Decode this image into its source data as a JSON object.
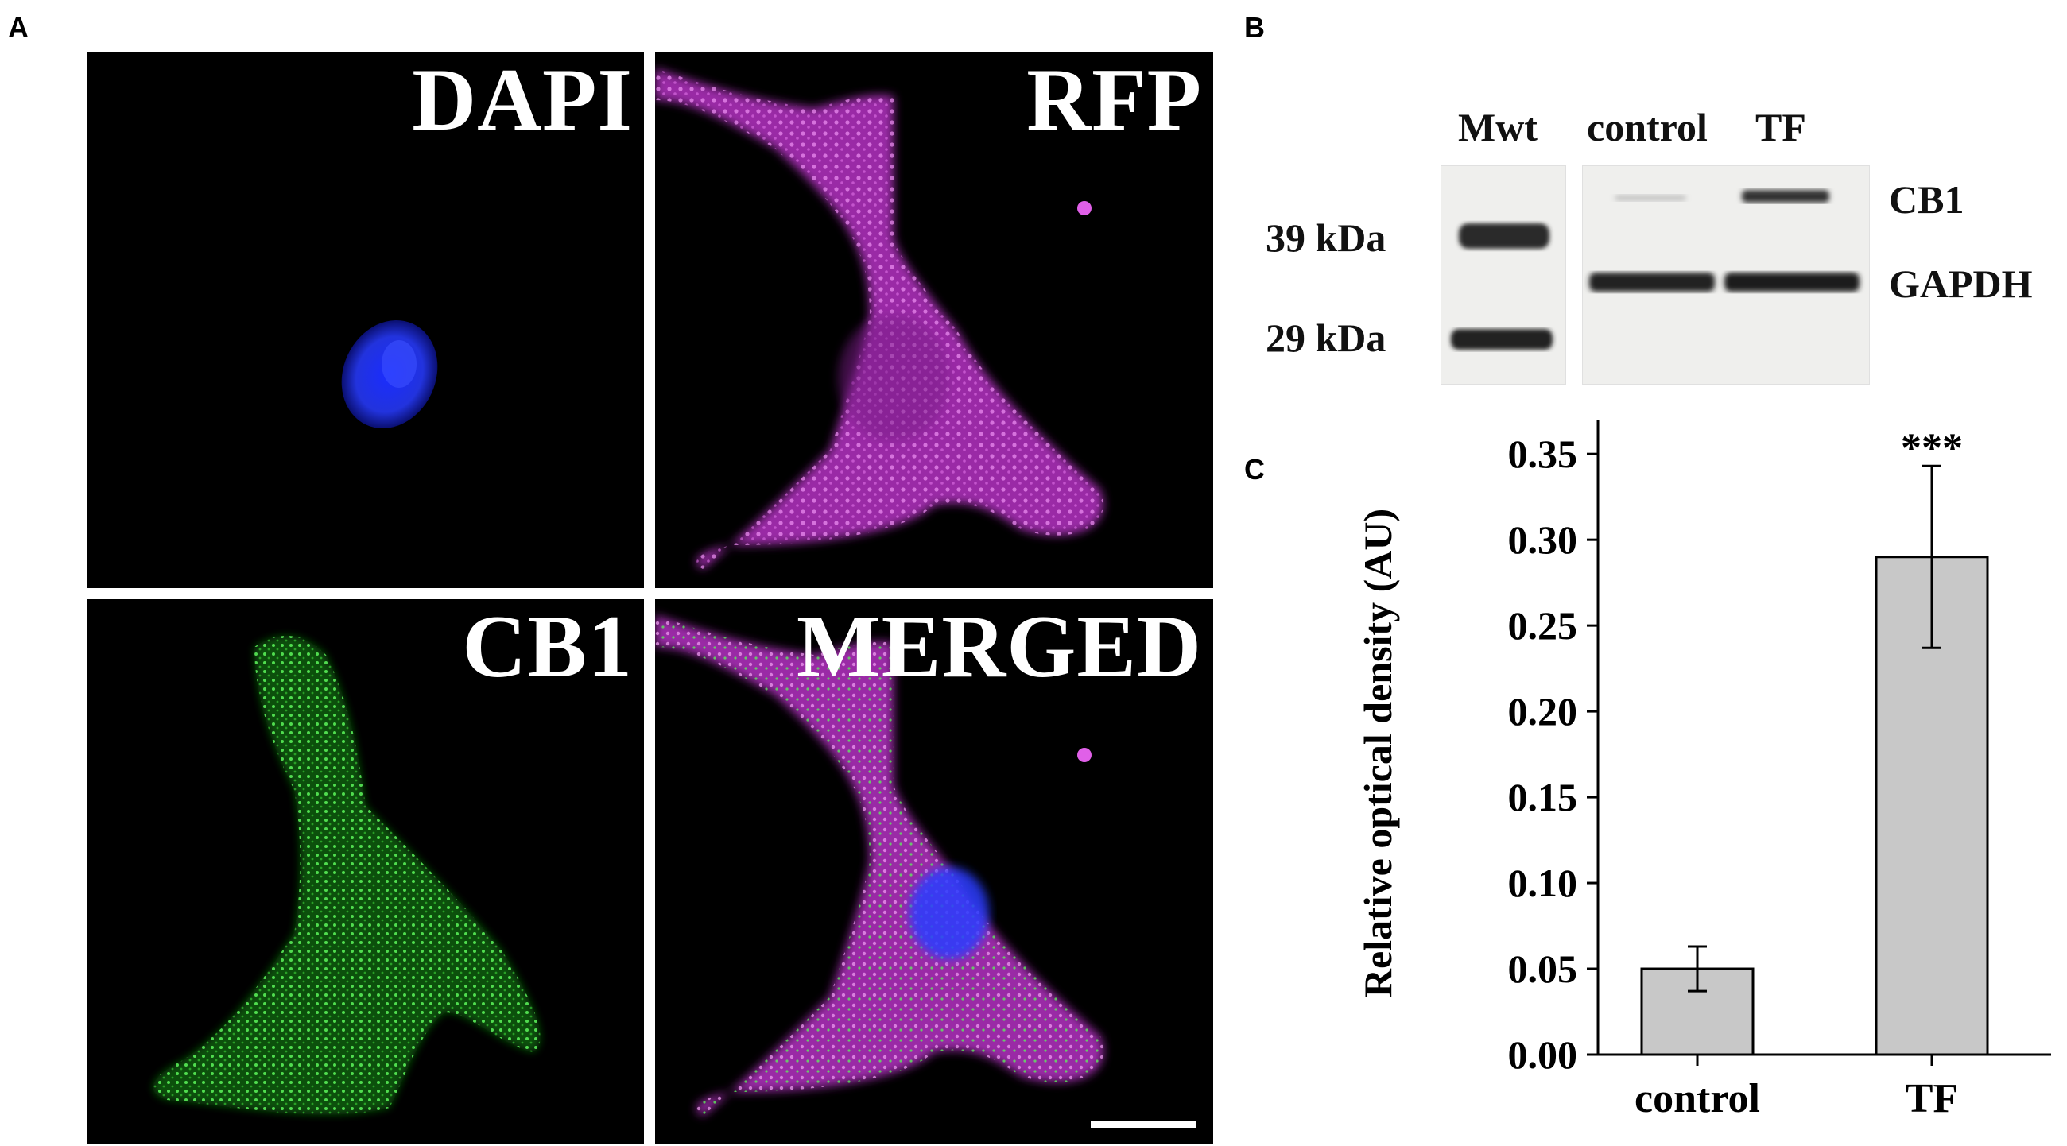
{
  "panel_A": {
    "letter": "A",
    "tiles": [
      {
        "label": "DAPI"
      },
      {
        "label": "RFP"
      },
      {
        "label": "CB1"
      },
      {
        "label": "MERGED"
      }
    ],
    "colors": {
      "dapi": "#2b3cff",
      "rfp": "#c83cd0",
      "cb1": "#3ed13a"
    }
  },
  "panel_B": {
    "letter": "B",
    "lane_labels": {
      "mwt": "Mwt",
      "control": "control",
      "tf": "TF"
    },
    "markers": {
      "upper": "39 kDa",
      "lower": "29 kDa"
    },
    "band_labels": {
      "cb1": "CB1",
      "gapdh": "GAPDH"
    }
  },
  "chart_data": {
    "panel_letter": "C",
    "type": "bar",
    "categories": [
      "control",
      "TF"
    ],
    "values": [
      0.05,
      0.29
    ],
    "errors": [
      0.013,
      0.053
    ],
    "significance": [
      "",
      "***"
    ],
    "ylabel": "Relative optical density (AU)",
    "xlabel": "",
    "ylim": [
      0,
      0.37
    ],
    "yticks": [
      "0.00",
      "0.05",
      "0.10",
      "0.15",
      "0.20",
      "0.25",
      "0.30",
      "0.35"
    ],
    "bar_color": "#c8c8c8",
    "grid": false
  }
}
